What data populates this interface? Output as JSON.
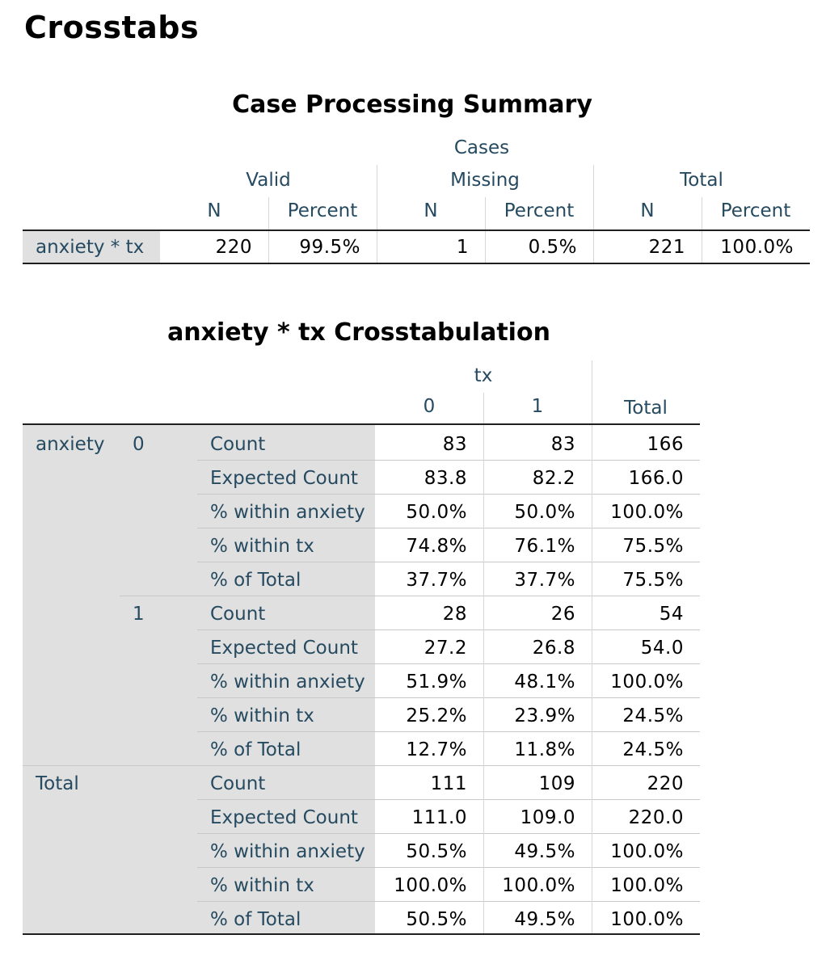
{
  "page_title": "Crosstabs",
  "summary": {
    "title": "Case Processing Summary",
    "cases_label": "Cases",
    "groups": [
      "Valid",
      "Missing",
      "Total"
    ],
    "subheaders": [
      "N",
      "Percent",
      "N",
      "Percent",
      "N",
      "Percent"
    ],
    "row_label": "anxiety * tx",
    "values": [
      "220",
      "99.5%",
      "1",
      "0.5%",
      "221",
      "100.0%"
    ]
  },
  "crosstab": {
    "title": "anxiety * tx Crosstabulation",
    "col_var": "tx",
    "col_headers": [
      "0",
      "1",
      "Total"
    ],
    "row_var": "anxiety",
    "total_label": "Total",
    "stat_labels": [
      "Count",
      "Expected Count",
      "% within anxiety",
      "% within tx",
      "% of Total"
    ],
    "groups": [
      {
        "level": "0",
        "rows": [
          [
            "83",
            "83",
            "166"
          ],
          [
            "83.8",
            "82.2",
            "166.0"
          ],
          [
            "50.0%",
            "50.0%",
            "100.0%"
          ],
          [
            "74.8%",
            "76.1%",
            "75.5%"
          ],
          [
            "37.7%",
            "37.7%",
            "75.5%"
          ]
        ]
      },
      {
        "level": "1",
        "rows": [
          [
            "28",
            "26",
            "54"
          ],
          [
            "27.2",
            "26.8",
            "54.0"
          ],
          [
            "51.9%",
            "48.1%",
            "100.0%"
          ],
          [
            "25.2%",
            "23.9%",
            "24.5%"
          ],
          [
            "12.7%",
            "11.8%",
            "24.5%"
          ]
        ]
      },
      {
        "level": "",
        "rows": [
          [
            "111",
            "109",
            "220"
          ],
          [
            "111.0",
            "109.0",
            "220.0"
          ],
          [
            "50.5%",
            "49.5%",
            "100.0%"
          ],
          [
            "100.0%",
            "100.0%",
            "100.0%"
          ],
          [
            "50.5%",
            "49.5%",
            "100.0%"
          ]
        ]
      }
    ]
  }
}
